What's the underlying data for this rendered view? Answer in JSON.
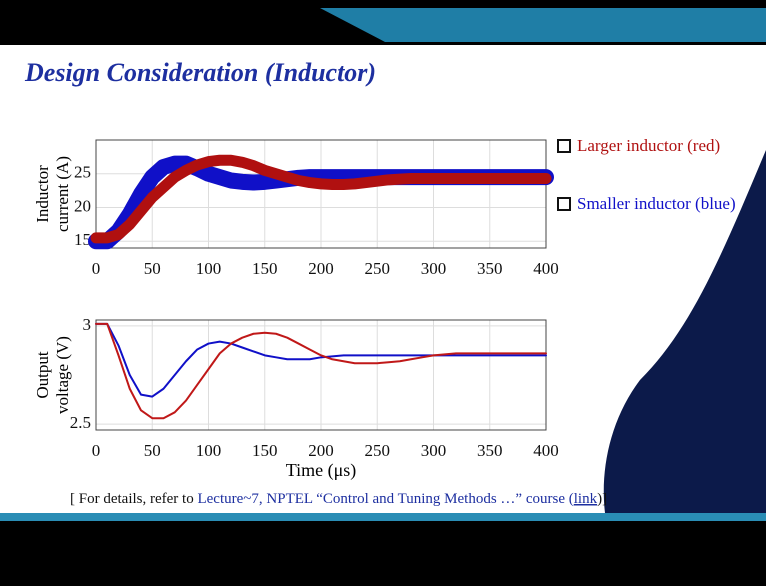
{
  "slide": {
    "title": "Design Consideration (Inductor)",
    "footnote": [
      "[ For details, refer to ",
      "Lecture~7",
      ", NPTEL “Control and Tuning Methods …” course (",
      "link",
      ")]"
    ]
  },
  "chart_data": [
    {
      "type": "line",
      "ylabel": [
        "Inductor",
        "current (A)"
      ],
      "grid": true,
      "x": [
        0,
        10,
        20,
        30,
        40,
        50,
        60,
        70,
        80,
        90,
        100,
        110,
        120,
        130,
        140,
        150,
        160,
        170,
        180,
        190,
        200,
        210,
        220,
        230,
        240,
        250,
        260,
        270,
        280,
        290,
        300,
        310,
        320,
        330,
        340,
        350,
        360,
        370,
        380,
        390,
        400
      ],
      "xlim": [
        0,
        400
      ],
      "xticks": [
        0,
        50,
        100,
        150,
        200,
        250,
        300,
        350,
        400
      ],
      "ylim": [
        14,
        30
      ],
      "yticks": [
        15,
        20,
        25
      ],
      "series": [
        {
          "name": "Larger inductor (red)",
          "color": "#b01010",
          "values": [
            15.5,
            15.5,
            16,
            17.5,
            19.5,
            21.5,
            23,
            24.5,
            25.5,
            26.3,
            26.8,
            27,
            27,
            26.7,
            26.2,
            25.5,
            25,
            24.5,
            24,
            23.7,
            23.5,
            23.4,
            23.4,
            23.5,
            23.7,
            23.9,
            24.1,
            24.2,
            24.3,
            24.3,
            24.3,
            24.3,
            24.3,
            24.3,
            24.3,
            24.3,
            24.3,
            24.3,
            24.3,
            24.3,
            24.3
          ]
        },
        {
          "name": "Smaller inductor (blue)",
          "color": "#1010c8",
          "values": [
            15,
            15,
            16.5,
            19,
            22,
            24.5,
            26,
            26.5,
            26.5,
            25.8,
            25,
            24.5,
            24,
            23.8,
            23.7,
            23.8,
            24,
            24.2,
            24.4,
            24.5,
            24.5,
            24.5,
            24.5,
            24.5,
            24.5,
            24.5,
            24.5,
            24.5,
            24.5,
            24.5,
            24.5,
            24.5,
            24.5,
            24.5,
            24.5,
            24.5,
            24.5,
            24.5,
            24.5,
            24.5,
            24.5
          ]
        }
      ]
    },
    {
      "type": "line",
      "ylabel": [
        "Output",
        "voltage (V)"
      ],
      "xlabel": "Time (μs)",
      "grid": true,
      "x": [
        0,
        10,
        20,
        30,
        40,
        50,
        60,
        70,
        80,
        90,
        100,
        110,
        120,
        130,
        140,
        150,
        160,
        170,
        180,
        190,
        200,
        210,
        220,
        230,
        240,
        250,
        260,
        270,
        280,
        290,
        300,
        310,
        320,
        330,
        340,
        350,
        360,
        370,
        380,
        390,
        400
      ],
      "xlim": [
        0,
        400
      ],
      "xticks": [
        0,
        50,
        100,
        150,
        200,
        250,
        300,
        350,
        400
      ],
      "ylim": [
        2.47,
        3.03
      ],
      "yticks": [
        2.5,
        3
      ],
      "series": [
        {
          "color": "#1010c8",
          "values": [
            3.01,
            3.01,
            2.9,
            2.75,
            2.65,
            2.64,
            2.68,
            2.75,
            2.82,
            2.88,
            2.91,
            2.92,
            2.91,
            2.89,
            2.87,
            2.85,
            2.84,
            2.83,
            2.83,
            2.83,
            2.84,
            2.845,
            2.85,
            2.85,
            2.85,
            2.85,
            2.85,
            2.85,
            2.85,
            2.85,
            2.85,
            2.85,
            2.85,
            2.85,
            2.85,
            2.85,
            2.85,
            2.85,
            2.85,
            2.85,
            2.85
          ]
        },
        {
          "color": "#c01818",
          "values": [
            3.01,
            3.01,
            2.85,
            2.68,
            2.57,
            2.53,
            2.53,
            2.56,
            2.62,
            2.7,
            2.78,
            2.86,
            2.91,
            2.94,
            2.96,
            2.965,
            2.96,
            2.94,
            2.91,
            2.88,
            2.85,
            2.83,
            2.82,
            2.81,
            2.81,
            2.81,
            2.815,
            2.82,
            2.83,
            2.84,
            2.85,
            2.855,
            2.86,
            2.86,
            2.86,
            2.86,
            2.86,
            2.86,
            2.86,
            2.86,
            2.86
          ]
        }
      ]
    }
  ]
}
